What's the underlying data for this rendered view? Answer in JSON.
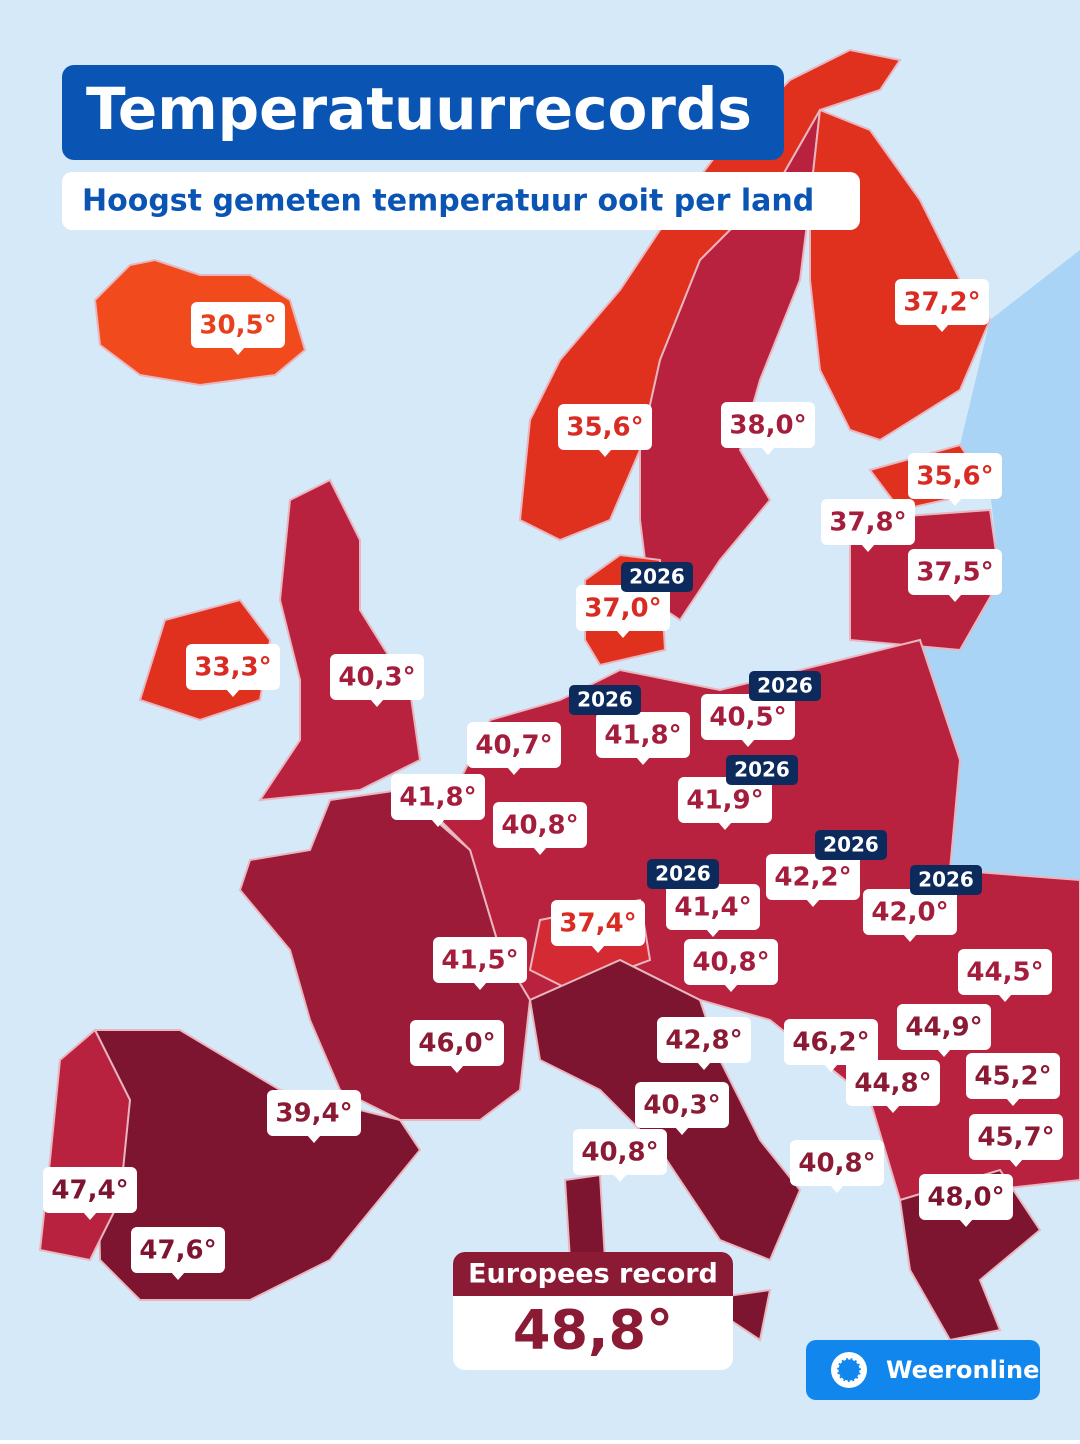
{
  "header": {
    "title": "Temperatuurrecords",
    "subtitle": "Hoogst gemeten temperatuur ooit per land"
  },
  "labels": [
    {
      "text": "30,5°",
      "color": "#e8401c"
    },
    {
      "text": "37,2°",
      "color": "#d92b22"
    },
    {
      "text": "35,6°",
      "color": "#d92b22"
    },
    {
      "text": "38,0°",
      "color": "#a51d3c"
    },
    {
      "text": "35,6°",
      "color": "#d92b22"
    },
    {
      "text": "37,8°",
      "color": "#a51d3c"
    },
    {
      "text": "37,5°",
      "color": "#a51d3c"
    },
    {
      "text": "37,0°",
      "color": "#d92b22",
      "year": "2026"
    },
    {
      "text": "33,3°",
      "color": "#d92b22"
    },
    {
      "text": "40,3°",
      "color": "#a51d3c"
    },
    {
      "text": "40,5°",
      "color": "#a51d3c",
      "year": "2026"
    },
    {
      "text": "41,8°",
      "color": "#a51d3c",
      "year": "2026"
    },
    {
      "text": "40,7°",
      "color": "#a51d3c"
    },
    {
      "text": "41,8°",
      "color": "#a51d3c"
    },
    {
      "text": "40,8°",
      "color": "#a51d3c"
    },
    {
      "text": "41,9°",
      "color": "#a51d3c",
      "year": "2026"
    },
    {
      "text": "42,2°",
      "color": "#a51d3c",
      "year": "2026"
    },
    {
      "text": "41,4°",
      "color": "#a51d3c",
      "year": "2026"
    },
    {
      "text": "42,0°",
      "color": "#a51d3c",
      "year": "2026"
    },
    {
      "text": "37,4°",
      "color": "#d92b22"
    },
    {
      "text": "41,5°",
      "color": "#a51d3c"
    },
    {
      "text": "40,8°",
      "color": "#a51d3c"
    },
    {
      "text": "44,5°",
      "color": "#a51d3c"
    },
    {
      "text": "46,0°",
      "color": "#8b1a35"
    },
    {
      "text": "42,8°",
      "color": "#8b1a35"
    },
    {
      "text": "46,2°",
      "color": "#8b1a35"
    },
    {
      "text": "44,9°",
      "color": "#8b1a35"
    },
    {
      "text": "45,2°",
      "color": "#8b1a35"
    },
    {
      "text": "44,8°",
      "color": "#8b1a35"
    },
    {
      "text": "39,4°",
      "color": "#8b1a35"
    },
    {
      "text": "40,3°",
      "color": "#8b1a35"
    },
    {
      "text": "45,7°",
      "color": "#8b1a35"
    },
    {
      "text": "40,8°",
      "color": "#8b1a35"
    },
    {
      "text": "40,8°",
      "color": "#8b1a35"
    },
    {
      "text": "47,4°",
      "color": "#7e1530"
    },
    {
      "text": "48,0°",
      "color": "#7e1530"
    },
    {
      "text": "47,6°",
      "color": "#7e1530"
    }
  ],
  "record": {
    "title": "Europees record",
    "value": "48,8°"
  },
  "brand": "Weeronline"
}
